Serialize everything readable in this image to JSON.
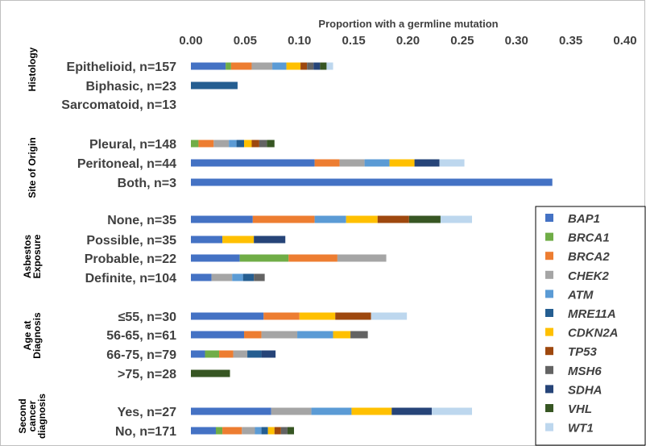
{
  "chart_data": {
    "type": "bar",
    "orientation": "horizontal",
    "stacked": true,
    "xlabel": "Proportion with a germline mutation",
    "xlim": [
      0,
      0.4
    ],
    "xticks": [
      "0.00",
      "0.05",
      "0.10",
      "0.15",
      "0.20",
      "0.25",
      "0.30",
      "0.35",
      "0.40"
    ],
    "grid": false,
    "legend_position": "right",
    "series": [
      {
        "name": "BAP1",
        "color": "#4472C4"
      },
      {
        "name": "BRCA1",
        "color": "#70AD47"
      },
      {
        "name": "BRCA2",
        "color": "#ED7D31"
      },
      {
        "name": "CHEK2",
        "color": "#A5A5A5"
      },
      {
        "name": "ATM",
        "color": "#5B9BD5"
      },
      {
        "name": "MRE11A",
        "color": "#255E91"
      },
      {
        "name": "CDKN2A",
        "color": "#FFC000"
      },
      {
        "name": "TP53",
        "color": "#9E480E"
      },
      {
        "name": "MSH6",
        "color": "#636363"
      },
      {
        "name": "SDHA",
        "color": "#264478"
      },
      {
        "name": "VHL",
        "color": "#375623"
      },
      {
        "name": "WT1",
        "color": "#BDD7EE"
      }
    ],
    "groups": [
      {
        "label": "Histology",
        "rows": [
          {
            "label": "Epithelioid, n=157",
            "values": [
              0.032,
              0.005,
              0.019,
              0.019,
              0.013,
              0.0,
              0.013,
              0.006,
              0.006,
              0.006,
              0.006,
              0.006
            ]
          },
          {
            "label": "Biphasic, n=23",
            "values": [
              0,
              0,
              0,
              0,
              0,
              0.043,
              0,
              0,
              0,
              0,
              0,
              0
            ]
          },
          {
            "label": "Sarcomatoid, n=13",
            "values": [
              0,
              0,
              0,
              0,
              0,
              0,
              0,
              0,
              0,
              0,
              0,
              0
            ]
          }
        ]
      },
      {
        "label": "Site of Origin",
        "rows": [
          {
            "label": "Pleural, n=148",
            "values": [
              0,
              0.007,
              0.014,
              0.014,
              0.007,
              0.007,
              0.007,
              0.007,
              0.007,
              0,
              0.007,
              0
            ]
          },
          {
            "label": "Peritoneal, n=44",
            "values": [
              0.114,
              0,
              0.023,
              0.023,
              0.023,
              0,
              0.023,
              0,
              0,
              0.023,
              0,
              0.023
            ]
          },
          {
            "label": "Both, n=3",
            "values": [
              0.333,
              0,
              0,
              0,
              0,
              0,
              0,
              0,
              0,
              0,
              0,
              0
            ]
          }
        ]
      },
      {
        "label": "Asbestos Exposure",
        "rows": [
          {
            "label": "None, n=35",
            "values": [
              0.057,
              0,
              0.057,
              0,
              0.029,
              0,
              0.029,
              0.029,
              0,
              0,
              0.029,
              0.029
            ]
          },
          {
            "label": "Possible, n=35",
            "values": [
              0.029,
              0,
              0,
              0,
              0,
              0,
              0.029,
              0,
              0,
              0.029,
              0,
              0
            ]
          },
          {
            "label": "Probable, n=22",
            "values": [
              0.045,
              0.045,
              0.045,
              0.045,
              0,
              0,
              0,
              0,
              0,
              0,
              0,
              0
            ]
          },
          {
            "label": "Definite, n=104",
            "values": [
              0.019,
              0,
              0,
              0.019,
              0.01,
              0.01,
              0,
              0,
              0.01,
              0,
              0,
              0
            ]
          }
        ]
      },
      {
        "label": "Age at Diagnosis",
        "rows": [
          {
            "label": "≤55, n=30",
            "values": [
              0.067,
              0,
              0.033,
              0,
              0,
              0,
              0.033,
              0.033,
              0,
              0,
              0,
              0.033
            ]
          },
          {
            "label": "56-65, n=61",
            "values": [
              0.049,
              0,
              0.016,
              0.033,
              0.033,
              0,
              0.016,
              0,
              0.016,
              0,
              0,
              0
            ]
          },
          {
            "label": "66-75, n=79",
            "values": [
              0.013,
              0.013,
              0.013,
              0.013,
              0,
              0.013,
              0,
              0,
              0,
              0.013,
              0,
              0
            ]
          },
          {
            "label": ">75, n=28",
            "values": [
              0,
              0,
              0,
              0,
              0,
              0,
              0,
              0,
              0,
              0,
              0.036,
              0
            ]
          }
        ]
      },
      {
        "label": "Second cancer diagnosis",
        "rows": [
          {
            "label": "Yes, n=27",
            "values": [
              0.074,
              0,
              0,
              0.037,
              0.037,
              0,
              0.037,
              0,
              0,
              0.037,
              0,
              0.037
            ]
          },
          {
            "label": "No, n=171",
            "values": [
              0.023,
              0.006,
              0.018,
              0.012,
              0.006,
              0.006,
              0.006,
              0.006,
              0.006,
              0,
              0.006,
              0
            ]
          }
        ]
      }
    ]
  }
}
